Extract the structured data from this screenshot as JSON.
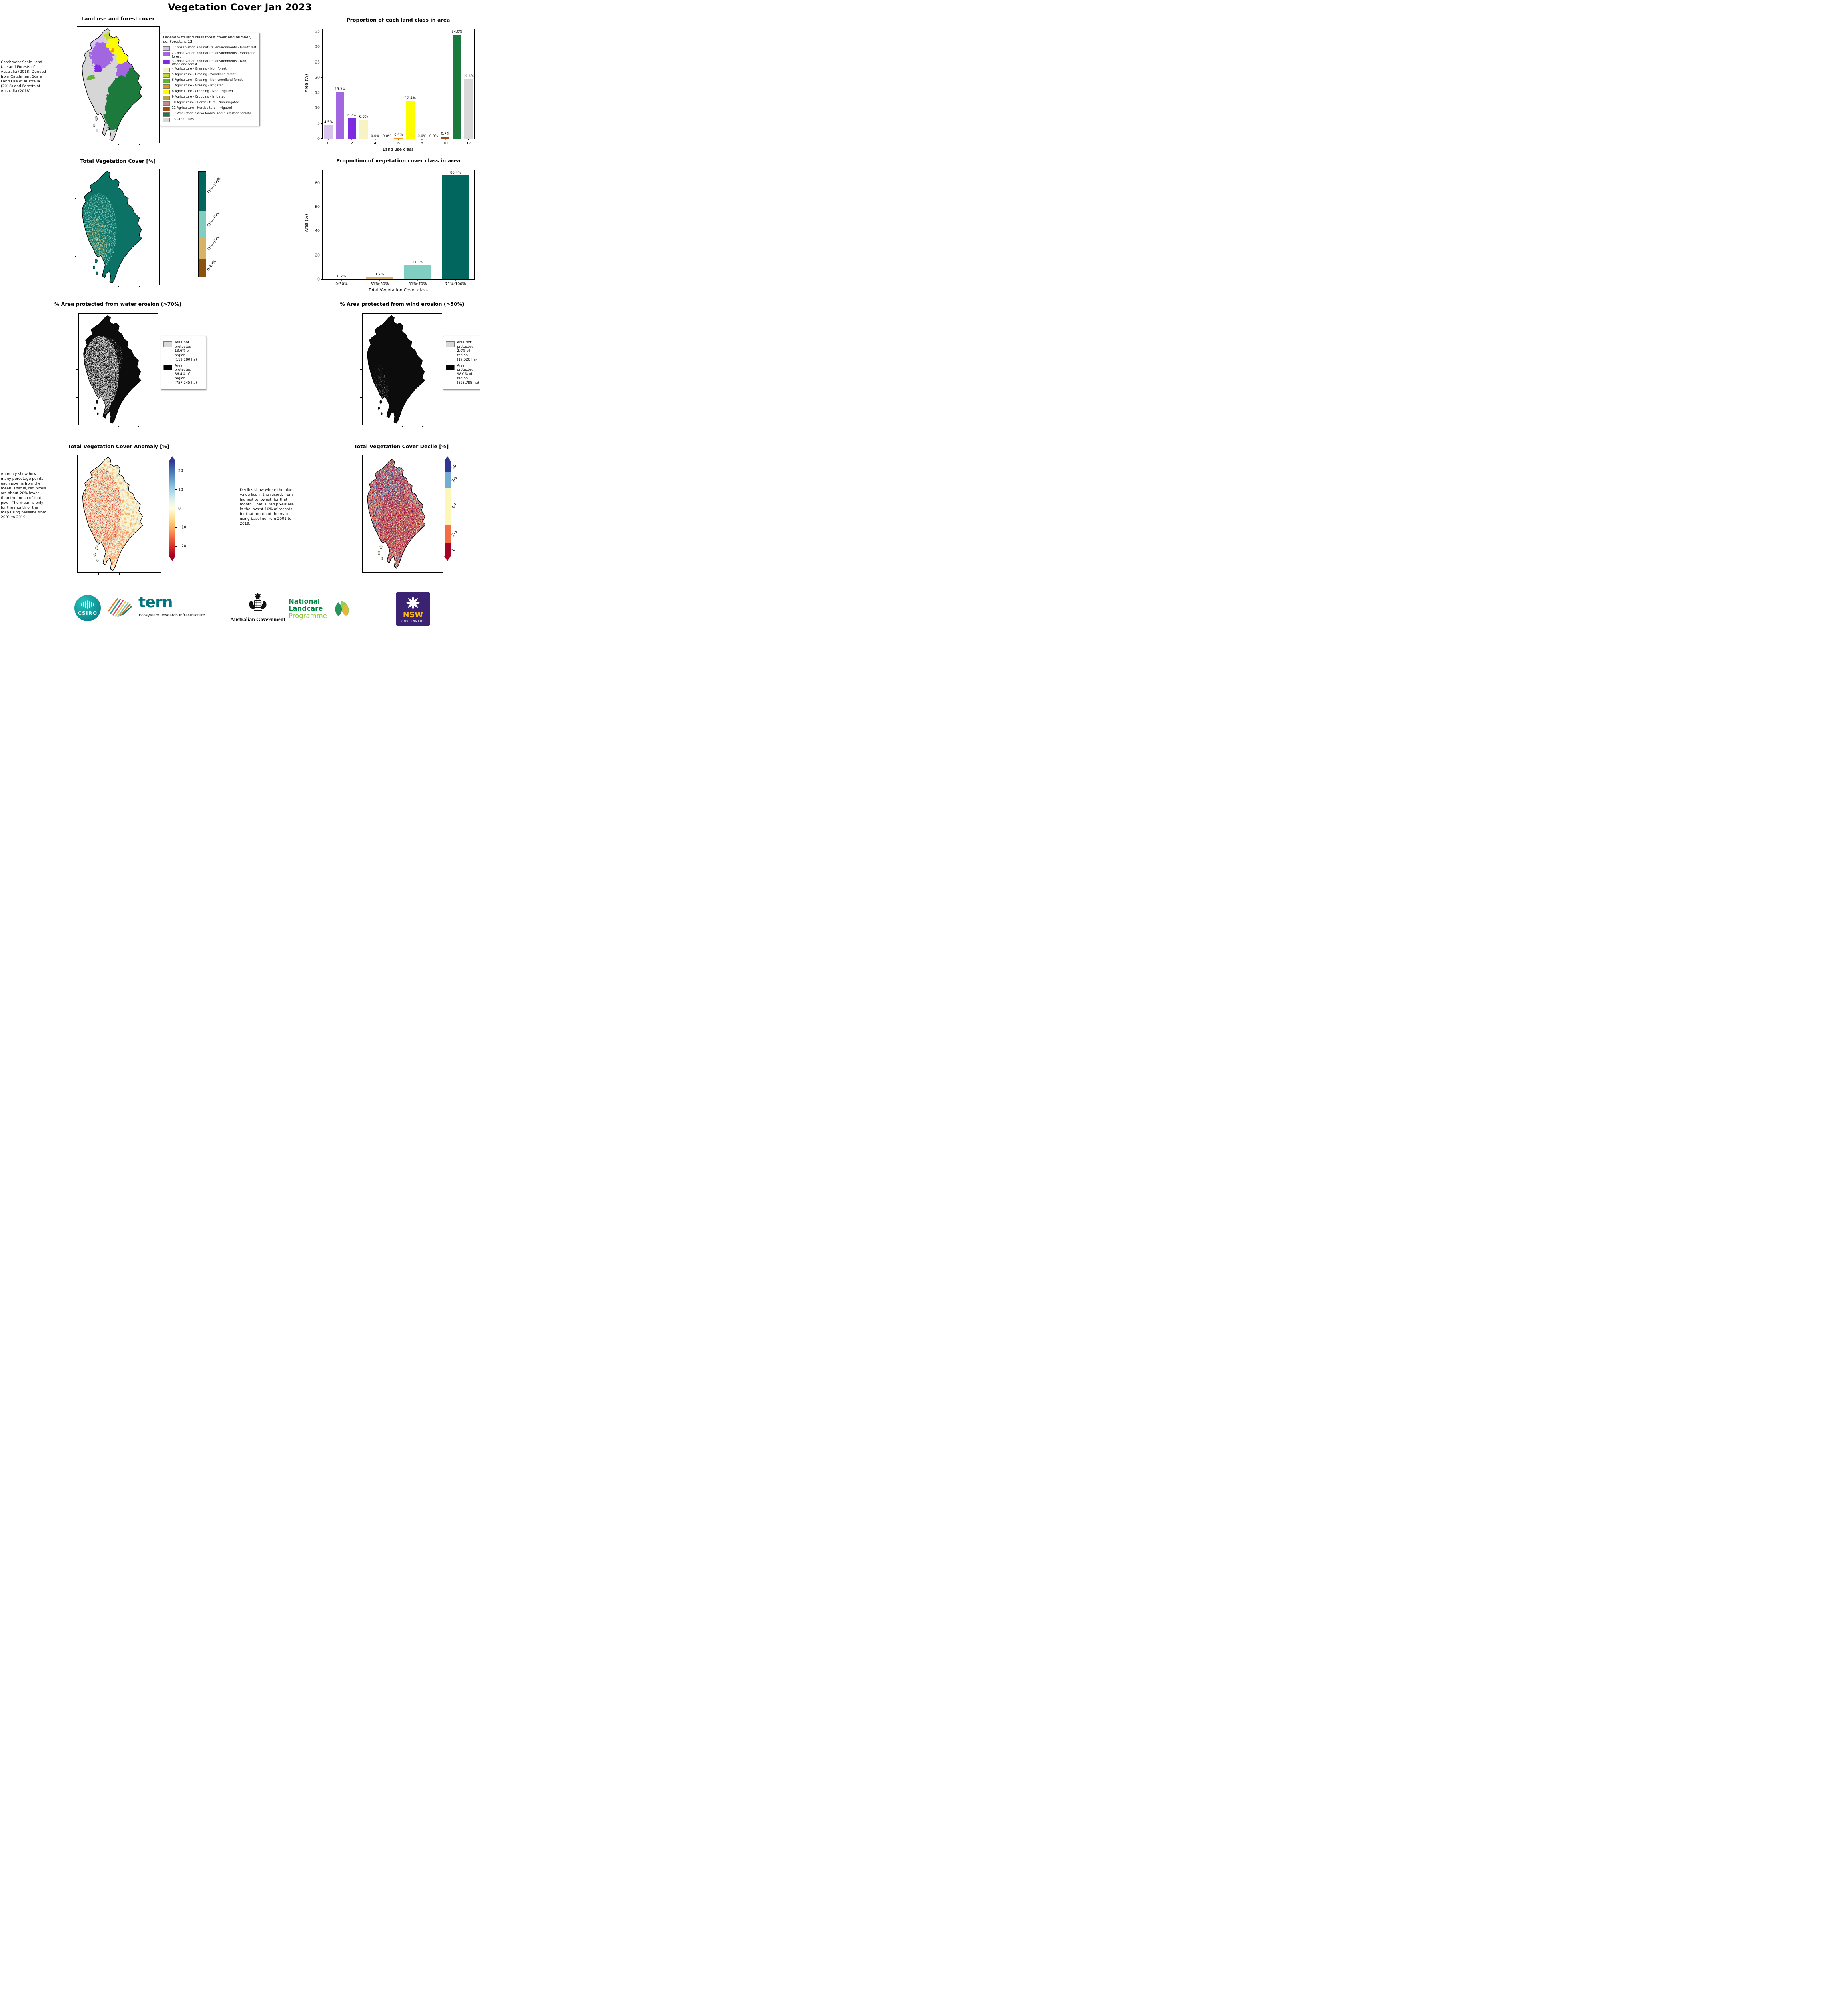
{
  "title": "Vegetation Cover Jan 2023",
  "panels": {
    "land_use": {
      "title": "Land use and forest cover",
      "note": " Catchment Scale Land Use and Forests of Australia (2018) Derived from Catchment Scale Land Use of Australia (2018) and Forests of Australia (2018)",
      "legend_title": "Legend with land class forest cover and number, i.e. Forests is 12",
      "legend_items": [
        {
          "label": "1 Conservation and natural environments - Non-forest",
          "color": "#d8c5ee"
        },
        {
          "label": "2 Conservation and natural environments - Woodland forest",
          "color": "#a266e0"
        },
        {
          "label": "3 Conservation and natural environments - Non-Woodland forest",
          "color": "#7d2ae0"
        },
        {
          "label": "4 Agriculture - Grazing - Non-forest",
          "color": "#f8f3c2"
        },
        {
          "label": "5 Agriculture - Grazing - Woodland forest",
          "color": "#c6d93b"
        },
        {
          "label": "6 Agriculture - Grazing - Non-woodland forest",
          "color": "#5fb32e"
        },
        {
          "label": "7 Agriculture - Grazing - Irrigated",
          "color": "#f59311"
        },
        {
          "label": "8 Agriculture - Cropping - Non-irrigated",
          "color": "#fdfd00"
        },
        {
          "label": "9 Agriculture - Cropping - Irrigated",
          "color": "#b8a24a"
        },
        {
          "label": "10 Agriculture - Horticulture - Non-irrigated",
          "color": "#bc8f8f"
        },
        {
          "label": "11 Agriculture - Horticulture - Irrigated",
          "color": "#9e4a12"
        },
        {
          "label": "12 Production native forests and plantation forests",
          "color": "#1b7a3d"
        },
        {
          "label": "13 Other uses",
          "color": "#d9d9d9"
        }
      ]
    },
    "veg_cover": {
      "title": "Total Vegetation Cover [%]",
      "cb_segments": [
        {
          "label": "71%-100%",
          "color": "#01665e",
          "size": 0.38
        },
        {
          "label": "51%-70%",
          "color": "#80cdc1",
          "size": 0.25
        },
        {
          "label": "31%-50%",
          "color": "#d8b365",
          "size": 0.2
        },
        {
          "label": "0-30%",
          "color": "#8c510a",
          "size": 0.17
        }
      ]
    },
    "water_erosion": {
      "title": "% Area protected from water erosion (>70%)",
      "not_protected": "Area not protected 13.6% of region (119,180 ha)",
      "protected": "Area protected 86.4% of region (757,145 ha)",
      "not_protected_color": "#d9d9d9",
      "protected_color": "#000000"
    },
    "wind_erosion": {
      "title": "% Area protected from wind erosion (>50%)",
      "not_protected": "Area not protected 2.0% of region (17,526 ha)",
      "protected": "Area protected 98.0% of region (858,798 ha)",
      "not_protected_color": "#d9d9d9",
      "protected_color": "#000000"
    },
    "anomaly": {
      "title": "Total Vegetation Cover Anomaly [%]",
      "note": "Anomaly show how many percetage points each pixel is from the mean. That is, red pixels are about 20% lower than the mean of that pixel. The mean is only for the month of the map using baseline from 2001 to 2019.",
      "cb_tick_values": [
        20,
        10,
        0,
        -10,
        -20
      ],
      "cb_tick_labels": [
        "20",
        "10",
        "0",
        "−10",
        "−20"
      ],
      "cb_range": [
        -25,
        25
      ]
    },
    "decile": {
      "title": "Total Vegetation Cover Decile [%]",
      "note": "Deciles show where the pixel value lies in the record, from highest to lowest, for that month. That is, red pixels are in the lowest 10% of records for that month of the map using baseline from 2001 to 2019.",
      "cb_segments": [
        {
          "label": "10",
          "color": "#313695",
          "size": 0.11
        },
        {
          "label": "8-9",
          "color": "#74add1",
          "size": 0.17
        },
        {
          "label": "4-7",
          "color": "#fdf7b9",
          "size": 0.39
        },
        {
          "label": "2-3",
          "color": "#f46d43",
          "size": 0.19
        },
        {
          "label": "1",
          "color": "#a50026",
          "size": 0.14
        }
      ]
    }
  },
  "chart_data": [
    {
      "type": "bar",
      "title": "Proportion of each land class in area",
      "xlabel": "Land use class",
      "ylabel": "Area (%)",
      "x": [
        0,
        1,
        2,
        3,
        4,
        5,
        6,
        7,
        8,
        9,
        10,
        11,
        12
      ],
      "values": [
        4.5,
        15.3,
        6.7,
        6.3,
        0.0,
        0.0,
        0.4,
        12.4,
        0.0,
        0.0,
        0.7,
        34.0,
        19.6
      ],
      "value_labels": [
        "4.5%",
        "15.3%",
        "6.7%",
        "6.3%",
        "0.0%",
        "0.0%",
        "0.4%",
        "12.4%",
        "0.0%",
        "0.0%",
        "0.7%",
        "34.0%",
        "19.6%"
      ],
      "colors": [
        "#d8c5ee",
        "#a266e0",
        "#7d2ae0",
        "#f8f3c2",
        "#c6d93b",
        "#5fb32e",
        "#f59311",
        "#fdfd00",
        "#b8a24a",
        "#bc8f8f",
        "#9e4a12",
        "#1b7a3d",
        "#d9d9d9"
      ],
      "yticks": [
        0,
        5,
        10,
        15,
        20,
        25,
        30,
        35
      ],
      "ylim": [
        0,
        35.8
      ],
      "xtick_idx": [
        0,
        2,
        4,
        6,
        8,
        10,
        12
      ],
      "xtick_labels": [
        "0",
        "2",
        "4",
        "6",
        "8",
        "10",
        "12"
      ],
      "legend_position": "none",
      "grid": false
    },
    {
      "type": "bar",
      "title": "Proportion of vegetation cover class in area",
      "xlabel": "Total Vegetation Cover class",
      "ylabel": "Area (%)",
      "categories": [
        "0-30%",
        "31%-50%",
        "51%-70%",
        "71%-100%"
      ],
      "values": [
        0.2,
        1.7,
        11.7,
        86.4
      ],
      "value_labels": [
        "0.2%",
        "1.7%",
        "11.7%",
        "86.4%"
      ],
      "colors": [
        "#8c510a",
        "#d8b365",
        "#80cdc1",
        "#01665e"
      ],
      "yticks": [
        0,
        20,
        40,
        60,
        80
      ],
      "ylim": [
        0,
        90.8
      ],
      "xtick_idx": [
        0,
        1,
        2,
        3
      ],
      "xtick_labels": [
        "0-30%",
        "31%-50%",
        "51%-70%",
        "71%-100%"
      ],
      "legend_position": "none",
      "grid": false
    }
  ],
  "logos": {
    "csiro": "CSIRO",
    "tern": "tern",
    "tern_tagline": "Ecosystem Research Infrastructure",
    "aus_gov": "Australian Government",
    "landcare_1": "National",
    "landcare_2": "Landcare",
    "landcare_3": "Programme",
    "nsw": "NSW",
    "nsw_sub": "GOVERNMENT"
  }
}
